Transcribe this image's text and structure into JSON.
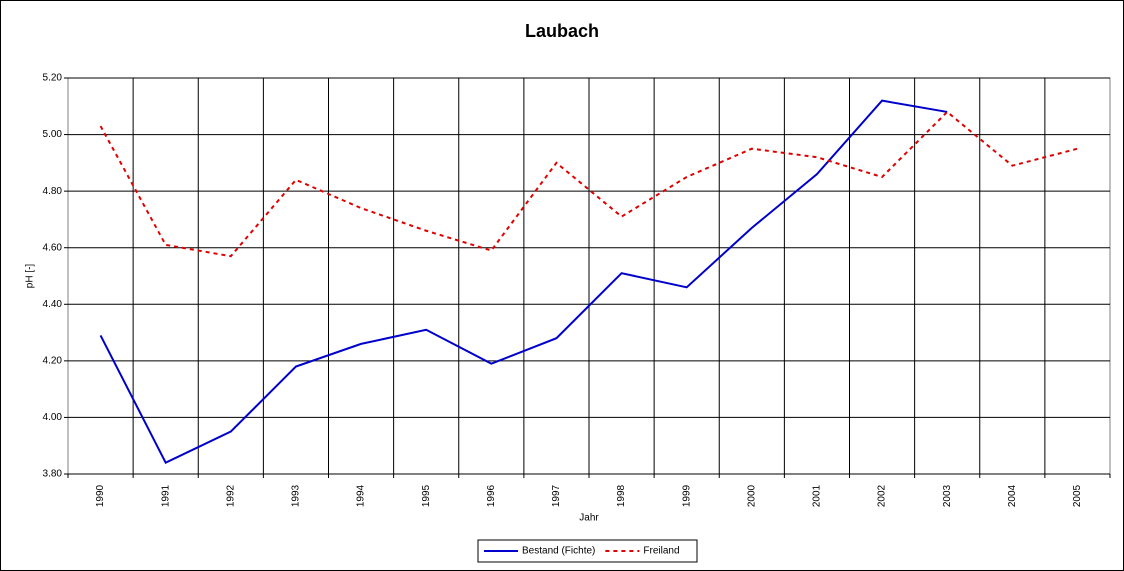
{
  "chart_data": {
    "type": "line",
    "title": "Laubach",
    "x_label": "Jahr",
    "y_label": "pH [-]",
    "categories": [
      "1990",
      "1991",
      "1992",
      "1993",
      "1994",
      "1995",
      "1996",
      "1997",
      "1998",
      "1999",
      "2000",
      "2001",
      "2002",
      "2003",
      "2004",
      "2005"
    ],
    "series": [
      {
        "name": "Bestand (Fichte)",
        "color": "#0000cc",
        "dash": "solid",
        "values": [
          4.29,
          3.84,
          3.95,
          4.18,
          4.26,
          4.31,
          4.19,
          4.28,
          4.51,
          4.46,
          4.67,
          4.86,
          5.12,
          5.08,
          null,
          null
        ]
      },
      {
        "name": "Freiland",
        "color": "#e00000",
        "dash": "dotted",
        "values": [
          5.03,
          4.61,
          4.57,
          4.84,
          4.74,
          4.66,
          4.59,
          4.9,
          4.71,
          4.85,
          4.95,
          4.92,
          4.85,
          5.08,
          4.89,
          4.95
        ]
      }
    ],
    "ylim": [
      3.8,
      5.2
    ],
    "yticks": [
      {
        "value": 3.8,
        "label": "3.80"
      },
      {
        "value": 4.0,
        "label": "4.00"
      },
      {
        "value": 4.2,
        "label": "4.20"
      },
      {
        "value": 4.4,
        "label": "4.40"
      },
      {
        "value": 4.6,
        "label": "4.60"
      },
      {
        "value": 4.8,
        "label": "4.80"
      },
      {
        "value": 5.0,
        "label": "5.00"
      },
      {
        "value": 5.2,
        "label": "5.20"
      }
    ],
    "grid": true,
    "legend": "bottom"
  }
}
